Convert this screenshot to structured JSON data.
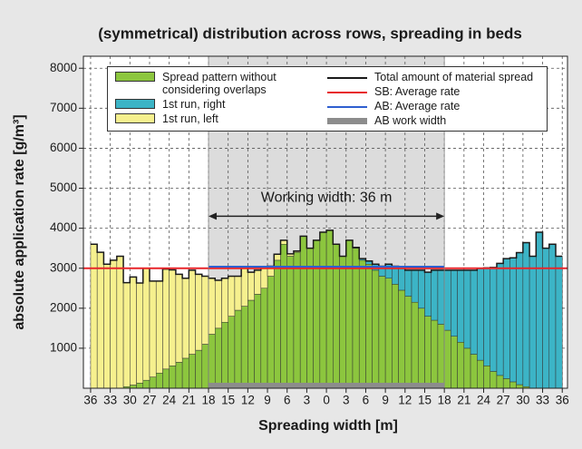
{
  "chart_data": {
    "type": "stacked_bar",
    "title": "(symmetrical) distribution across rows, spreading in beds",
    "xlabel": "Spreading width [m]",
    "ylabel": "absolute application rate [g/m³]",
    "x": [
      -35.5,
      -34.5,
      -33.5,
      -32.5,
      -31.5,
      -30.5,
      -29.5,
      -28.5,
      -27.5,
      -26.5,
      -25.5,
      -24.5,
      -23.5,
      -22.5,
      -21.5,
      -20.5,
      -19.5,
      -18.5,
      -17.5,
      -16.5,
      -15.5,
      -14.5,
      -13.5,
      -12.5,
      -11.5,
      -10.5,
      -9.5,
      -8.5,
      -7.5,
      -6.5,
      -5.5,
      -4.5,
      -3.5,
      -2.5,
      -1.5,
      -0.5,
      0.5,
      1.5,
      2.5,
      3.5,
      4.5,
      5.5,
      6.5,
      7.5,
      8.5,
      9.5,
      10.5,
      11.5,
      12.5,
      13.5,
      14.5,
      15.5,
      16.5,
      17.5,
      18.5,
      19.5,
      20.5,
      21.5,
      22.5,
      23.5,
      24.5,
      25.5,
      26.5,
      27.5,
      28.5,
      29.5,
      30.5,
      31.5,
      32.5,
      33.5,
      34.5,
      35.5
    ],
    "series": [
      {
        "name": "Spread pattern without considering overlaps",
        "color": "#8cc63e",
        "values": [
          0,
          0,
          0,
          0,
          0,
          40,
          80,
          130,
          200,
          280,
          380,
          480,
          560,
          650,
          750,
          850,
          950,
          1100,
          1350,
          1500,
          1650,
          1800,
          1950,
          2050,
          2200,
          2350,
          2500,
          2800,
          3200,
          3600,
          3300,
          3400,
          3800,
          3500,
          3700,
          3900,
          3950,
          3600,
          3300,
          3700,
          3500,
          3200,
          3100,
          2950,
          2800,
          2750,
          2600,
          2450,
          2300,
          2150,
          2000,
          1800,
          1700,
          1600,
          1450,
          1300,
          1150,
          1000,
          850,
          700,
          560,
          420,
          320,
          240,
          160,
          90,
          40,
          0,
          0,
          0,
          0,
          0
        ]
      },
      {
        "name": "1st run, right",
        "color": "#3cb4c6",
        "values": [
          0,
          0,
          0,
          0,
          0,
          0,
          0,
          0,
          0,
          0,
          0,
          0,
          0,
          0,
          0,
          0,
          0,
          0,
          0,
          0,
          0,
          0,
          0,
          0,
          0,
          0,
          0,
          0,
          0,
          0,
          0,
          0,
          0,
          0,
          0,
          0,
          0,
          0,
          0,
          0,
          20,
          40,
          80,
          150,
          250,
          350,
          450,
          550,
          650,
          800,
          950,
          1100,
          1250,
          1350,
          1500,
          1650,
          1800,
          1950,
          2100,
          2300,
          2450,
          2600,
          2800,
          3000,
          3100,
          3300,
          3600,
          3300,
          3900,
          3500,
          3600,
          3300
        ]
      },
      {
        "name": "1st run, left",
        "color": "#f6f08e",
        "values": [
          3600,
          3400,
          3100,
          3200,
          3300,
          2600,
          2700,
          2500,
          2800,
          2400,
          2300,
          2500,
          2400,
          2200,
          2000,
          2100,
          1900,
          1700,
          1400,
          1200,
          1100,
          1000,
          850,
          950,
          700,
          600,
          500,
          250,
          150,
          100,
          60,
          30,
          0,
          0,
          0,
          0,
          0,
          0,
          0,
          0,
          0,
          0,
          0,
          0,
          0,
          0,
          0,
          0,
          0,
          0,
          0,
          0,
          0,
          0,
          0,
          0,
          0,
          0,
          0,
          0,
          0,
          0,
          0,
          0,
          0,
          0,
          0,
          0,
          0,
          0,
          0,
          0
        ]
      }
    ],
    "total": {
      "name": "Total amount of material spread",
      "color": "#1a1a1a"
    },
    "reference_lines": [
      {
        "name": "SB: Average rate",
        "color": "#e8252a",
        "value": 3000
      },
      {
        "name": "AB: Average rate",
        "color": "#2f5fd0",
        "value": 3040,
        "x": [
          -18,
          18
        ]
      }
    ],
    "work_width": {
      "name": "AB work width",
      "color": "#8c8c8c",
      "x": [
        -18,
        18
      ]
    },
    "annotation": {
      "text": "Working width: 36 m",
      "x": [
        -18,
        18
      ],
      "y": 4300
    },
    "xlim": [
      -37.1,
      36.8
    ],
    "ylim": [
      0,
      8300
    ],
    "xticks": [
      {
        "value": -36,
        "label": "36"
      },
      {
        "value": -33,
        "label": "33"
      },
      {
        "value": -30,
        "label": "30"
      },
      {
        "value": -27,
        "label": "27"
      },
      {
        "value": -24,
        "label": "24"
      },
      {
        "value": -21,
        "label": "21"
      },
      {
        "value": -18,
        "label": "18"
      },
      {
        "value": -15,
        "label": "15"
      },
      {
        "value": -12,
        "label": "12"
      },
      {
        "value": -9,
        "label": "9"
      },
      {
        "value": -6,
        "label": "6"
      },
      {
        "value": -3,
        "label": "3"
      },
      0,
      3,
      6,
      9,
      12,
      15,
      18,
      21,
      24,
      27,
      30,
      33,
      36
    ],
    "yticks": [
      1000,
      2000,
      3000,
      4000,
      5000,
      6000,
      7000,
      8000
    ],
    "grid": true
  }
}
